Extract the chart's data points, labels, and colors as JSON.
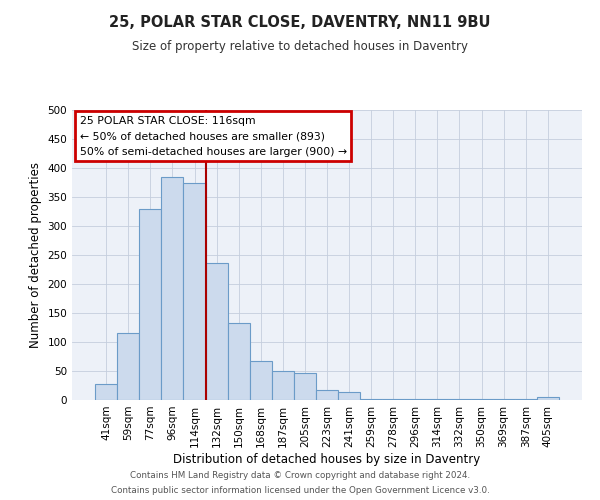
{
  "title": "25, POLAR STAR CLOSE, DAVENTRY, NN11 9BU",
  "subtitle": "Size of property relative to detached houses in Daventry",
  "xlabel": "Distribution of detached houses by size in Daventry",
  "ylabel": "Number of detached properties",
  "bar_labels": [
    "41sqm",
    "59sqm",
    "77sqm",
    "96sqm",
    "114sqm",
    "132sqm",
    "150sqm",
    "168sqm",
    "187sqm",
    "205sqm",
    "223sqm",
    "241sqm",
    "259sqm",
    "278sqm",
    "296sqm",
    "314sqm",
    "332sqm",
    "350sqm",
    "369sqm",
    "387sqm",
    "405sqm"
  ],
  "bar_values": [
    28,
    116,
    330,
    385,
    375,
    236,
    132,
    68,
    50,
    46,
    18,
    13,
    2,
    2,
    2,
    2,
    2,
    2,
    2,
    2,
    5
  ],
  "bar_color": "#ccdaed",
  "bar_edge_color": "#6b9bc8",
  "vline_position": 4.5,
  "vline_color": "#aa0000",
  "annotation_title": "25 POLAR STAR CLOSE: 116sqm",
  "annotation_line1": "← 50% of detached houses are smaller (893)",
  "annotation_line2": "50% of semi-detached houses are larger (900) →",
  "annotation_box_color": "#cc0000",
  "ylim": [
    0,
    500
  ],
  "yticks": [
    0,
    50,
    100,
    150,
    200,
    250,
    300,
    350,
    400,
    450,
    500
  ],
  "footer_line1": "Contains HM Land Registry data © Crown copyright and database right 2024.",
  "footer_line2": "Contains public sector information licensed under the Open Government Licence v3.0.",
  "fig_bg_color": "#ffffff",
  "plot_bg_color": "#edf1f8"
}
